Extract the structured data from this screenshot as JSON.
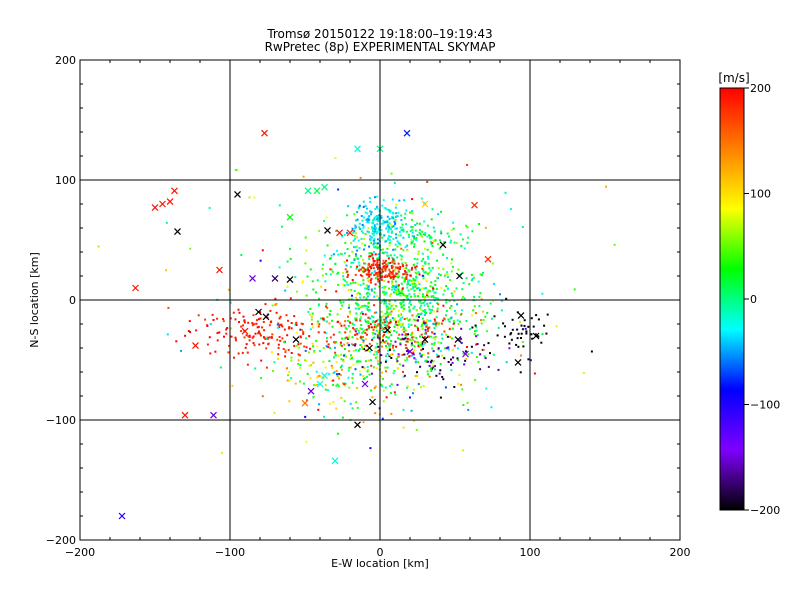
{
  "chart_data": {
    "type": "scatter",
    "title": "Tromsø 20150122 19:18:00–19:19:43",
    "subtitle": "RwPretec (8p) EXPERIMENTAL SKYMAP",
    "xlabel": "E-W location [km]",
    "ylabel": "N-S location [km]",
    "xlim": [
      -200,
      200
    ],
    "ylim": [
      -200,
      200
    ],
    "xticks": [
      "−200",
      "−100",
      "0",
      "100",
      "200"
    ],
    "yticks": [
      "−200",
      "−100",
      "0",
      "100",
      "200"
    ],
    "xtick_values": [
      -200,
      -100,
      0,
      100,
      200
    ],
    "ytick_values": [
      -200,
      -100,
      0,
      100,
      200
    ],
    "grid": true,
    "colorbar": {
      "label": "[m/s]",
      "range": [
        -200,
        200
      ],
      "ticks": [
        "200",
        "100",
        "0",
        "−100",
        "−200"
      ],
      "tick_values": [
        200,
        100,
        0,
        -100,
        -200
      ],
      "colormap": [
        "#000000",
        "#7f00ff",
        "#0000ff",
        "#00ffff",
        "#00ff00",
        "#ffff00",
        "#ff7f00",
        "#ff0000"
      ]
    },
    "points_x_markers": [
      {
        "x": -77,
        "y": 139,
        "v": 190
      },
      {
        "x": 18,
        "y": 139,
        "v": -80
      },
      {
        "x": -15,
        "y": 126,
        "v": -20
      },
      {
        "x": 0,
        "y": 126,
        "v": 0
      },
      {
        "x": -95,
        "y": 88,
        "v": -200
      },
      {
        "x": -137,
        "y": 91,
        "v": 190
      },
      {
        "x": -140,
        "y": 82,
        "v": 190
      },
      {
        "x": -145,
        "y": 80,
        "v": 190
      },
      {
        "x": -150,
        "y": 77,
        "v": 190
      },
      {
        "x": -48,
        "y": 91,
        "v": 0
      },
      {
        "x": -42,
        "y": 91,
        "v": 10
      },
      {
        "x": -37,
        "y": 94,
        "v": 0
      },
      {
        "x": -135,
        "y": 57,
        "v": -200
      },
      {
        "x": -60,
        "y": 69,
        "v": 30
      },
      {
        "x": -27,
        "y": 56,
        "v": 190
      },
      {
        "x": -35,
        "y": 58,
        "v": -200
      },
      {
        "x": -20,
        "y": 56,
        "v": 180
      },
      {
        "x": -163,
        "y": 10,
        "v": 190
      },
      {
        "x": -107,
        "y": 25,
        "v": 190
      },
      {
        "x": -85,
        "y": 18,
        "v": -150
      },
      {
        "x": -70,
        "y": 18,
        "v": -180
      },
      {
        "x": -60,
        "y": 17,
        "v": -200
      },
      {
        "x": 63,
        "y": 79,
        "v": 180
      },
      {
        "x": 30,
        "y": 80,
        "v": 110
      },
      {
        "x": 42,
        "y": 46,
        "v": -200
      },
      {
        "x": 53,
        "y": 20,
        "v": -200
      },
      {
        "x": 72,
        "y": 34,
        "v": 180
      },
      {
        "x": -81,
        "y": -10,
        "v": -200
      },
      {
        "x": -76,
        "y": -14,
        "v": -200
      },
      {
        "x": -123,
        "y": -38,
        "v": 190
      },
      {
        "x": -90,
        "y": -26,
        "v": 190
      },
      {
        "x": -56,
        "y": -33,
        "v": -200
      },
      {
        "x": -37,
        "y": -63,
        "v": -20
      },
      {
        "x": -40,
        "y": -70,
        "v": -20
      },
      {
        "x": -46,
        "y": -76,
        "v": -150
      },
      {
        "x": -50,
        "y": -86,
        "v": 150
      },
      {
        "x": -10,
        "y": -70,
        "v": -150
      },
      {
        "x": -5,
        "y": -85,
        "v": -200
      },
      {
        "x": -15,
        "y": -104,
        "v": -200
      },
      {
        "x": -130,
        "y": -96,
        "v": 190
      },
      {
        "x": -111,
        "y": -96,
        "v": -150
      },
      {
        "x": -30,
        "y": -134,
        "v": -20
      },
      {
        "x": -172,
        "y": -180,
        "v": -100
      },
      {
        "x": 94,
        "y": -13,
        "v": -200
      },
      {
        "x": 104,
        "y": -30,
        "v": -200
      },
      {
        "x": 92,
        "y": -52,
        "v": -200
      },
      {
        "x": 52,
        "y": -33,
        "v": -200
      },
      {
        "x": 57,
        "y": -45,
        "v": -150
      },
      {
        "x": 30,
        "y": -33,
        "v": -200
      },
      {
        "x": 20,
        "y": -43,
        "v": -150
      },
      {
        "x": -7,
        "y": -40,
        "v": -200
      },
      {
        "x": 5,
        "y": -25,
        "v": -200
      }
    ],
    "series_note": "dots: Doppler line-of-sight velocity, colour-coded by colorbar"
  }
}
